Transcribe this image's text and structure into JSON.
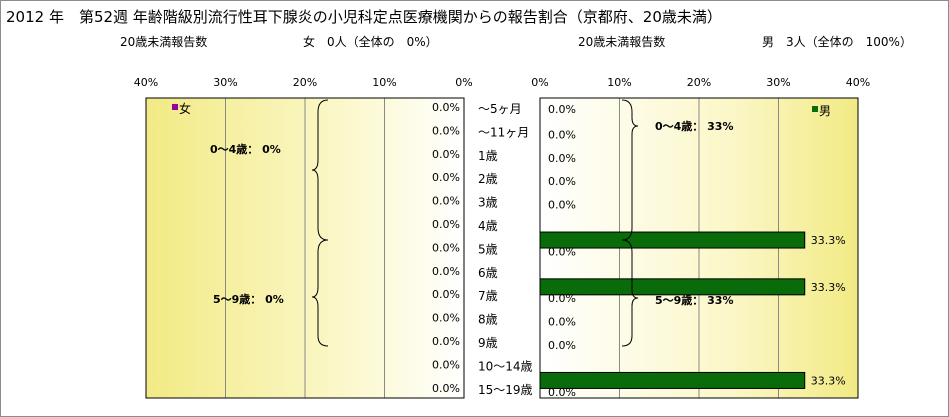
{
  "title": "2012 年　第52週 年齢階級別流行性耳下腺炎の小児科定点医療機関からの報告割合（京都府、20歳未満）",
  "left_header": {
    "label": "20歳未満報告数",
    "summary": "女　0人（全体の　0%）"
  },
  "right_header": {
    "label": "20歳未満報告数",
    "summary": "男　3人（全体の　100%）"
  },
  "chart_data": {
    "type": "bar",
    "orientation": "horizontal",
    "categories": [
      "～5ヶ月",
      "～11ヶ月",
      "1歳",
      "2歳",
      "3歳",
      "4歳",
      "5歳",
      "6歳",
      "7歳",
      "8歳",
      "9歳",
      "10～14歳",
      "15～19歳"
    ],
    "series": [
      {
        "name": "女",
        "color": "#9b009b",
        "values": [
          0,
          0,
          0,
          0,
          0,
          0,
          0,
          0,
          0,
          0,
          0,
          0,
          0
        ],
        "value_labels": [
          "0.0%",
          "0.0%",
          "0.0%",
          "0.0%",
          "0.0%",
          "0.0%",
          "0.0%",
          "0.0%",
          "0.0%",
          "0.0%",
          "0.0%",
          "0.0%",
          "0.0%"
        ]
      },
      {
        "name": "男",
        "color": "#0a6b0a",
        "values": [
          0,
          0,
          0,
          0,
          0,
          33.3,
          0,
          33.3,
          0,
          0,
          0,
          33.3,
          0
        ],
        "value_labels": [
          "0.0%",
          "0.0%",
          "0.0%",
          "0.0%",
          "0.0%",
          "33.3%",
          "0.0%",
          "33.3%",
          "0.0%",
          "0.0%",
          "0.0%",
          "33.3%",
          "0.0%"
        ]
      }
    ],
    "xlim": [
      0,
      40
    ],
    "ticks": [
      "0%",
      "10%",
      "20%",
      "30%",
      "40%"
    ],
    "tick_values": [
      0,
      10,
      20,
      30,
      40
    ],
    "grid": true,
    "legend": "top-right of each panel",
    "annotations": {
      "left": [
        "0～4歳：  0%",
        "5～9歳：  0%"
      ],
      "right": [
        "0～4歳：  33%",
        "5～9歳：  33%"
      ]
    }
  }
}
